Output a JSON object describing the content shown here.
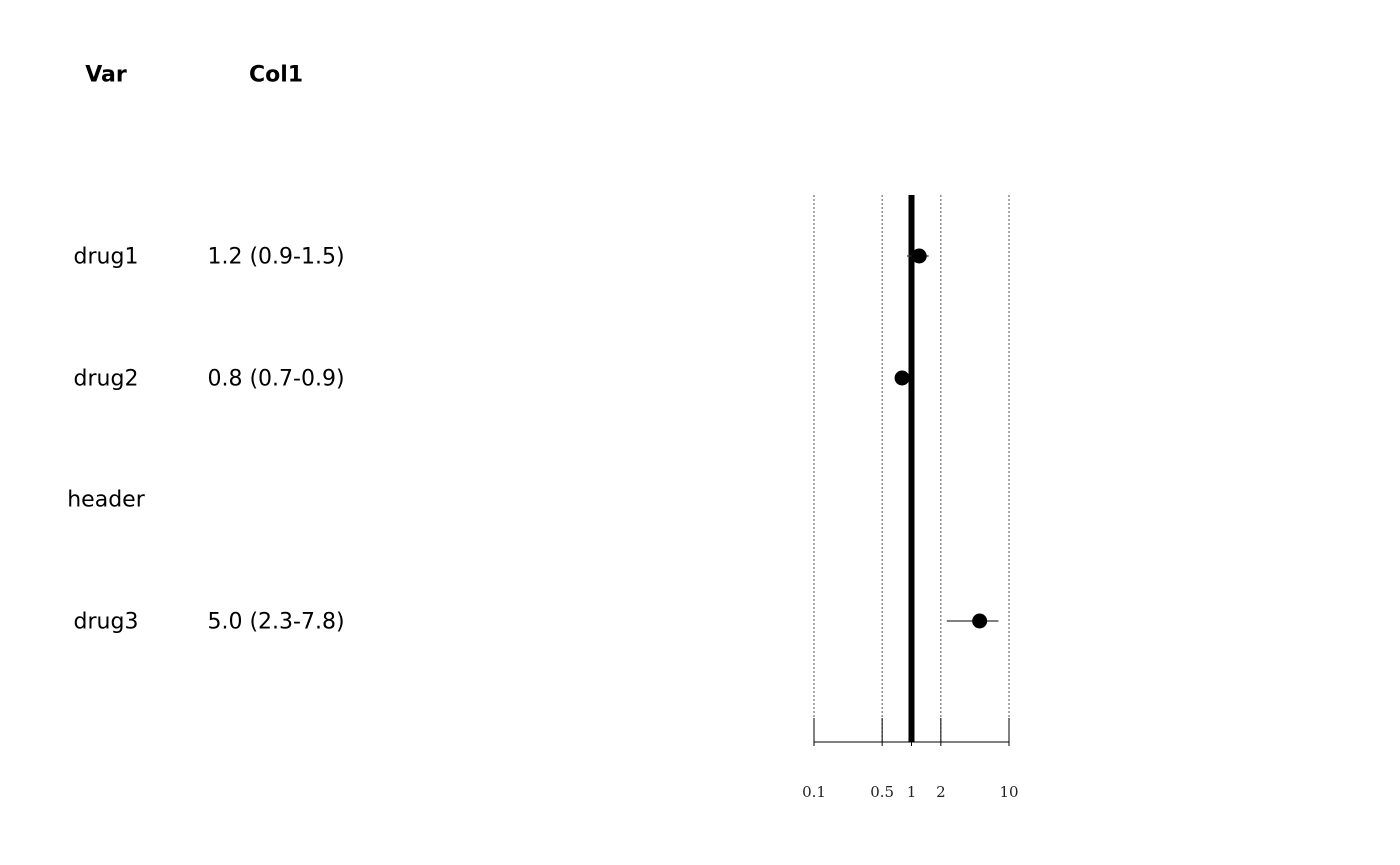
{
  "table": {
    "headers": [
      "Var",
      "Col1"
    ],
    "rows": [
      {
        "var": "drug1",
        "col1": "1.2 (0.9-1.5)"
      },
      {
        "var": "drug2",
        "col1": "0.8 (0.7-0.9)"
      },
      {
        "var": "header",
        "col1": ""
      },
      {
        "var": "drug3",
        "col1": "5.0 (2.3-7.8)"
      }
    ]
  },
  "chart_data": {
    "type": "scatter",
    "title": "",
    "xlabel": "",
    "ylabel": "",
    "x_scale": "log",
    "x_ticks": [
      0.1,
      0.5,
      1,
      2,
      10
    ],
    "x_tick_labels": [
      "0.1",
      "0.5",
      "1",
      "2",
      "10"
    ],
    "xlim": [
      0.1,
      10
    ],
    "reference_line": 1,
    "grid": true,
    "categories": [
      "drug1",
      "drug2",
      "header",
      "drug3"
    ],
    "estimates": [
      1.2,
      0.8,
      null,
      5.0
    ],
    "lower": [
      0.9,
      0.7,
      null,
      2.3
    ],
    "upper": [
      1.5,
      0.9,
      null,
      7.8
    ],
    "colors": {
      "marker": "#000000",
      "ref_line": "#000000",
      "grid": "#555555"
    }
  }
}
